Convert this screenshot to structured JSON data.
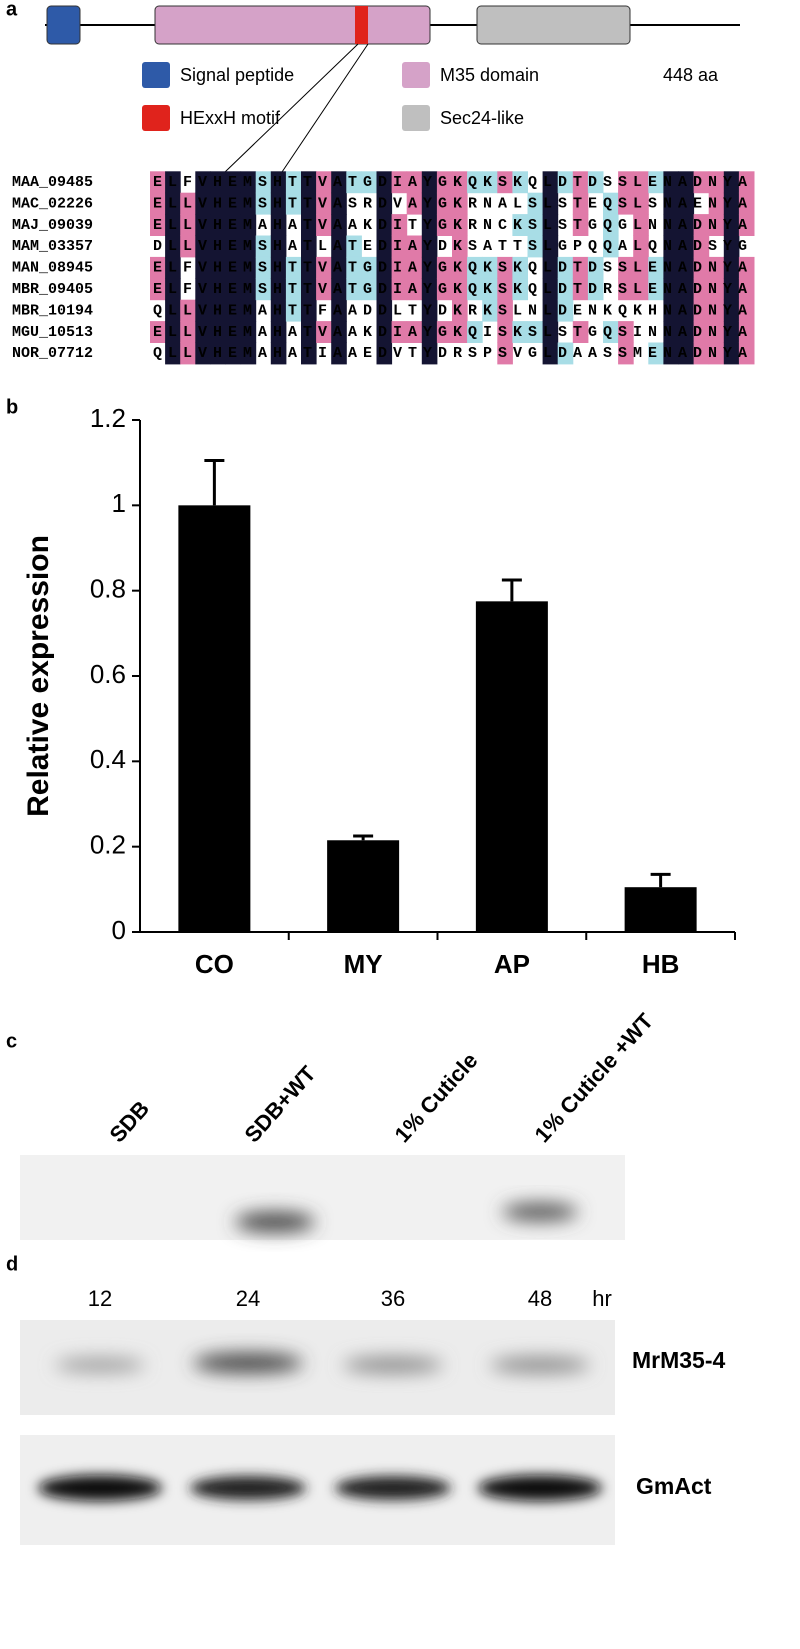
{
  "panel_labels": [
    "a",
    "b",
    "c",
    "d"
  ],
  "domains": {
    "legend": [
      "Signal peptide",
      "HExxH motif",
      "M35 domain",
      "Sec24-like"
    ],
    "length": "448 aa"
  },
  "alignment": {
    "names": [
      "MAA_09485",
      "MAC_02226",
      "MAJ_09039",
      "MAM_03357",
      "MAN_08945",
      "MBR_09405",
      "MBR_10194",
      "MGU_10513",
      "NOR_07712"
    ],
    "sequences": [
      "ELFVHEMSHTTVATGDIAYGKQKSKQLDTDSSLENADNYA",
      "ELLVHEMSHTTVASRDVAYGKRNALSLSTEQSLSNAENYA",
      "ELLVHEMAHATVAAKDITYGKRNCKSLSTGQGLNNADNYA",
      "DLLVHEMSHATLATEDIAYDKSATTSLGPQQALQNADSYG",
      "ELFVHEMSHTTVATGDIAYGKQKSKQLDTDSSLENADNYA",
      "ELFVHEMSHTTVATGDIAYGKQKSKQLDTDRSLENADNYA",
      "QLLVHEMAHTTFAADDLTYDKRKSLNLDENKQKHNADNYA",
      "ELLVHEMAHATVAAKDIAYGKQISKSLSTGQSINNADNYA",
      "QLLVHEMAHATIAAEDVTYDRSPSVGLDAASSMENADNYA"
    ]
  },
  "chart_data": {
    "type": "bar",
    "ylabel": "Relative expression",
    "categories": [
      "CO",
      "MY",
      "AP",
      "HB"
    ],
    "values": [
      1.0,
      0.215,
      0.775,
      0.105
    ],
    "errors": [
      0.105,
      0.01,
      0.05,
      0.03
    ],
    "color": "#000000",
    "ylim": [
      0,
      1.2
    ],
    "yticks": [
      0,
      0.2,
      0.4,
      0.6,
      0.8,
      1,
      1.2
    ]
  },
  "gel_c": {
    "lanes": [
      "SDB",
      "SDB+WT",
      "1% Cuticle",
      "1% Cuticle +WT"
    ]
  },
  "gel_d": {
    "times": [
      "12",
      "24",
      "36",
      "48"
    ],
    "unit": "hr",
    "rows": [
      "MrM35-4",
      "GmAct"
    ]
  }
}
